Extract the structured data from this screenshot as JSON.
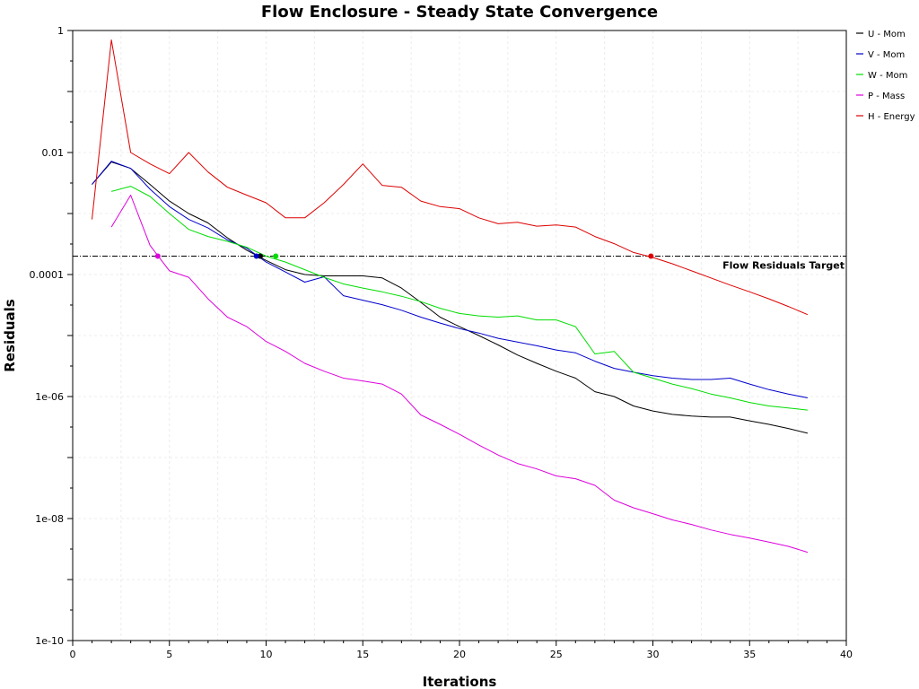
{
  "chart_data": {
    "type": "line",
    "title": "Flow Enclosure - Steady State Convergence",
    "xlabel": "Iterations",
    "ylabel": "Residuals",
    "x_scale": "linear",
    "y_scale": "log",
    "xlim": [
      0,
      40
    ],
    "ylim": [
      1e-10,
      1
    ],
    "x_ticks": [
      0,
      5,
      10,
      15,
      20,
      25,
      30,
      35,
      40
    ],
    "x_tick_labels": [
      "0",
      "5",
      "10",
      "15",
      "20",
      "25",
      "30",
      "35",
      "40"
    ],
    "y_ticks": [
      1,
      0.01,
      0.0001,
      1e-06,
      1e-08,
      1e-10
    ],
    "y_tick_labels": [
      "1",
      "0.01",
      "0.0001",
      "1e-06",
      "1e-08",
      "1e-10"
    ],
    "grid": true,
    "legend_position": "top-right",
    "target": {
      "label": "Flow Residuals Target",
      "value": 0.0002
    },
    "series": [
      {
        "name": "U - Mom",
        "color": "#000000",
        "x": [
          1,
          2,
          3,
          4,
          5,
          6,
          7,
          8,
          9,
          10,
          11,
          12,
          13,
          14,
          15,
          16,
          17,
          18,
          19,
          20,
          21,
          22,
          23,
          24,
          25,
          26,
          27,
          28,
          29,
          30,
          31,
          32,
          33,
          34,
          35,
          36,
          37,
          38
        ],
        "y": [
          0.003,
          0.007,
          0.0055,
          0.003,
          0.0016,
          0.001,
          0.0007,
          0.0004,
          0.00025,
          0.00017,
          0.00012,
          0.0001,
          9.5e-05,
          9.5e-05,
          9.5e-05,
          8.8e-05,
          6e-05,
          3.5e-05,
          2e-05,
          1.4e-05,
          1e-05,
          7e-06,
          4.8e-06,
          3.5e-06,
          2.6e-06,
          2e-06,
          1.2e-06,
          1e-06,
          7e-07,
          5.8e-07,
          5.1e-07,
          4.8e-07,
          4.6e-07,
          4.6e-07,
          4e-07,
          3.5e-07,
          3e-07,
          2.5e-07
        ]
      },
      {
        "name": "V - Mom",
        "color": "#0000cc",
        "x": [
          1,
          2,
          3,
          4,
          5,
          6,
          7,
          8,
          9,
          10,
          11,
          12,
          13,
          14,
          15,
          16,
          17,
          18,
          19,
          20,
          21,
          22,
          23,
          24,
          25,
          26,
          27,
          28,
          29,
          30,
          31,
          32,
          33,
          34,
          35,
          36,
          37,
          38
        ],
        "y": [
          0.003,
          0.0072,
          0.0055,
          0.0025,
          0.0013,
          0.0008,
          0.00058,
          0.00037,
          0.00027,
          0.00016,
          0.00011,
          7.5e-05,
          9.2e-05,
          4.5e-05,
          3.8e-05,
          3.2e-05,
          2.6e-05,
          2e-05,
          1.6e-05,
          1.3e-05,
          1.1e-05,
          9e-06,
          7.8e-06,
          6.8e-06,
          5.8e-06,
          5.2e-06,
          3.8e-06,
          2.9e-06,
          2.5e-06,
          2.2e-06,
          2e-06,
          1.9e-06,
          1.9e-06,
          2e-06,
          1.6e-06,
          1.3e-06,
          1.1e-06,
          9.5e-07
        ]
      },
      {
        "name": "W - Mom",
        "color": "#00dd00",
        "x": [
          2,
          3,
          4,
          5,
          6,
          7,
          8,
          9,
          10,
          11,
          12,
          13,
          14,
          15,
          16,
          17,
          18,
          19,
          20,
          21,
          22,
          23,
          24,
          25,
          26,
          27,
          28,
          29,
          30,
          31,
          32,
          33,
          34,
          35,
          36,
          37,
          38
        ],
        "y": [
          0.0023,
          0.0028,
          0.0019,
          0.001,
          0.00055,
          0.00042,
          0.00035,
          0.00028,
          0.0002,
          0.00016,
          0.00012,
          9e-05,
          7e-05,
          6e-05,
          5.2e-05,
          4.4e-05,
          3.6e-05,
          2.8e-05,
          2.3e-05,
          2.1e-05,
          2e-05,
          2.1e-05,
          1.8e-05,
          1.8e-05,
          1.4e-05,
          5e-06,
          5.5e-06,
          2.5e-06,
          2e-06,
          1.6e-06,
          1.35e-06,
          1.1e-06,
          9.5e-07,
          8e-07,
          7e-07,
          6.5e-07,
          6e-07
        ]
      },
      {
        "name": "P - Mass",
        "color": "#dd00dd",
        "x": [
          2,
          3,
          4,
          5,
          6,
          7,
          8,
          9,
          10,
          11,
          12,
          13,
          14,
          15,
          16,
          17,
          18,
          19,
          20,
          21,
          22,
          23,
          24,
          25,
          26,
          27,
          28,
          29,
          30,
          31,
          32,
          33,
          34,
          35,
          36,
          37,
          38
        ],
        "y": [
          0.0006,
          0.002,
          0.0003,
          0.000115,
          9e-05,
          4e-05,
          2e-05,
          1.4e-05,
          8e-06,
          5.5e-06,
          3.5e-06,
          2.6e-06,
          2e-06,
          1.8e-06,
          1.6e-06,
          1.1e-06,
          5e-07,
          3.5e-07,
          2.4e-07,
          1.6e-07,
          1.1e-07,
          8e-08,
          6.5e-08,
          5e-08,
          4.5e-08,
          3.5e-08,
          2e-08,
          1.5e-08,
          1.2e-08,
          9.5e-09,
          8e-09,
          6.5e-09,
          5.5e-09,
          4.8e-09,
          4.1e-09,
          3.5e-09,
          2.8e-09
        ]
      },
      {
        "name": "H - Energy",
        "color": "#dd0000",
        "x": [
          1,
          2,
          3,
          4,
          5,
          6,
          7,
          8,
          9,
          10,
          11,
          12,
          13,
          14,
          15,
          16,
          17,
          18,
          19,
          20,
          21,
          22,
          23,
          24,
          25,
          26,
          27,
          28,
          29,
          30,
          31,
          32,
          33,
          34,
          35,
          36,
          37,
          38
        ],
        "y": [
          0.0008,
          0.7,
          0.01,
          0.0065,
          0.0045,
          0.01,
          0.0048,
          0.0027,
          0.002,
          0.0015,
          0.00085,
          0.00085,
          0.0015,
          0.003,
          0.0065,
          0.0029,
          0.0027,
          0.0016,
          0.0013,
          0.0012,
          0.00085,
          0.00068,
          0.00072,
          0.00062,
          0.00065,
          0.0006,
          0.00042,
          0.00032,
          0.00023,
          0.00019,
          0.00015,
          0.000115,
          8.8e-05,
          6.7e-05,
          5.2e-05,
          4e-05,
          3e-05,
          2.2e-05
        ]
      }
    ],
    "target_markers": [
      {
        "series": "P - Mass",
        "x": 4.4,
        "y": 0.0002,
        "color": "#dd00dd"
      },
      {
        "series": "U - Mom",
        "x": 9.7,
        "y": 0.0002,
        "color": "#000000"
      },
      {
        "series": "V - Mom",
        "x": 9.5,
        "y": 0.0002,
        "color": "#0000cc"
      },
      {
        "series": "W - Mom",
        "x": 10.5,
        "y": 0.0002,
        "color": "#00dd00"
      },
      {
        "series": "H - Energy",
        "x": 29.9,
        "y": 0.0002,
        "color": "#dd0000"
      }
    ]
  }
}
